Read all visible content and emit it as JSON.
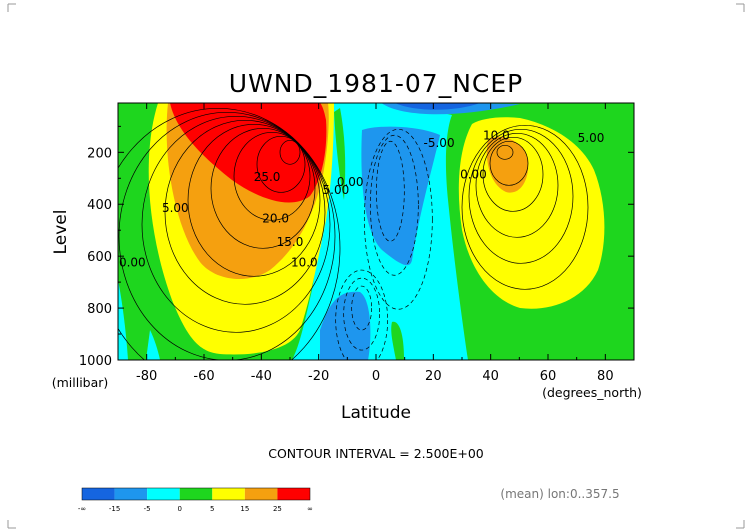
{
  "chart_data": {
    "type": "heatmap",
    "title": "UWND_1981-07_NCEP",
    "xlabel": "Latitude",
    "ylabel": "Level",
    "x_units": "(degrees_north)",
    "y_units": "(millibar)",
    "xlim": [
      -90,
      90
    ],
    "ylim": [
      1000,
      10
    ],
    "x_ticks": [
      -80,
      -60,
      -40,
      -20,
      0,
      20,
      40,
      60,
      80
    ],
    "y_ticks": [
      200,
      400,
      600,
      800,
      1000
    ],
    "contour_interval_text": "CONTOUR INTERVAL = 2.500E+00",
    "footer_text": "(mean) lon:0..357.5",
    "contour_labels": [
      {
        "text": "5.00",
        "x": -70,
        "y": 430
      },
      {
        "text": "0.00",
        "x": -85,
        "y": 640
      },
      {
        "text": "25.0",
        "x": -38,
        "y": 310
      },
      {
        "text": "20.0",
        "x": -35,
        "y": 470
      },
      {
        "text": "15.0",
        "x": -30,
        "y": 560
      },
      {
        "text": "10.0",
        "x": -25,
        "y": 640
      },
      {
        "text": "5.00",
        "x": -14,
        "y": 360
      },
      {
        "text": "0.00",
        "x": -9,
        "y": 330
      },
      {
        "text": "-5.00",
        "x": 22,
        "y": 180
      },
      {
        "text": "0.00",
        "x": 34,
        "y": 300
      },
      {
        "text": "10.0",
        "x": 42,
        "y": 150
      },
      {
        "text": "5.00",
        "x": 75,
        "y": 160
      }
    ],
    "colorbar": {
      "boundaries": [
        "-∞",
        "-15",
        "-5",
        "0",
        "5",
        "15",
        "25",
        "∞"
      ],
      "colors": [
        "#1565e0",
        "#1e96ee",
        "#00ffff",
        "#1ed61e",
        "#ffff00",
        "#f5a00f",
        "#ff0000"
      ]
    }
  }
}
